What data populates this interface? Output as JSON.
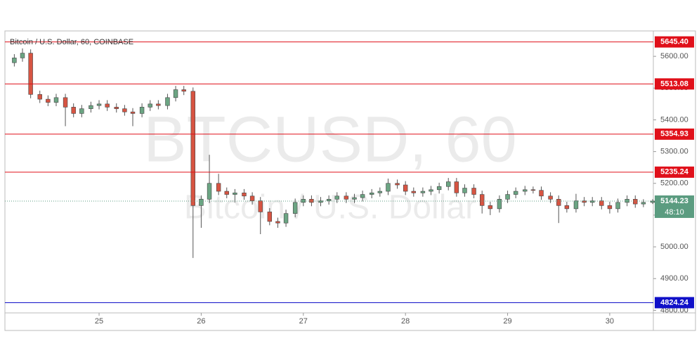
{
  "chart_data": {
    "type": "candlestick",
    "title": "Bitcoin / U.S. Dollar, 60, COINBASE",
    "watermark_symbol": "BTCUSD, 60",
    "watermark_name": "Bitcoin / U.S. Dollar",
    "x": [
      24.17,
      24.25,
      24.33,
      24.42,
      24.5,
      24.58,
      24.67,
      24.75,
      24.83,
      24.92,
      25.0,
      25.08,
      25.17,
      25.25,
      25.33,
      25.42,
      25.5,
      25.58,
      25.67,
      25.75,
      25.83,
      25.92,
      26.0,
      26.08,
      26.17,
      26.25,
      26.33,
      26.42,
      26.5,
      26.58,
      26.67,
      26.75,
      26.83,
      26.92,
      27.0,
      27.08,
      27.17,
      27.25,
      27.33,
      27.42,
      27.5,
      27.58,
      27.67,
      27.75,
      27.83,
      27.92,
      28.0,
      28.08,
      28.17,
      28.25,
      28.33,
      28.42,
      28.5,
      28.58,
      28.67,
      28.75,
      28.83,
      28.92,
      29.0,
      29.08,
      29.17,
      29.25,
      29.33,
      29.42,
      29.5,
      29.58,
      29.67,
      29.75,
      29.83,
      29.92,
      30.0,
      30.08,
      30.17,
      30.25,
      30.33,
      30.42
    ],
    "open": [
      5580,
      5595,
      5610,
      5480,
      5465,
      5455,
      5470,
      5440,
      5420,
      5435,
      5445,
      5450,
      5440,
      5435,
      5425,
      5420,
      5440,
      5450,
      5445,
      5470,
      5495,
      5490,
      5130,
      5150,
      5200,
      5175,
      5165,
      5170,
      5160,
      5145,
      5110,
      5080,
      5075,
      5105,
      5140,
      5150,
      5140,
      5145,
      5150,
      5160,
      5150,
      5155,
      5165,
      5170,
      5175,
      5200,
      5195,
      5175,
      5170,
      5175,
      5180,
      5190,
      5205,
      5170,
      5185,
      5165,
      5130,
      5120,
      5150,
      5165,
      5175,
      5180,
      5178,
      5160,
      5150,
      5130,
      5120,
      5145,
      5140,
      5145,
      5130,
      5120,
      5140,
      5150,
      5135,
      5140
    ],
    "high": [
      5607,
      5625,
      5622,
      5492,
      5477,
      5482,
      5482,
      5452,
      5447,
      5457,
      5462,
      5462,
      5452,
      5447,
      5437,
      5452,
      5462,
      5462,
      5482,
      5507,
      5507,
      5502,
      5162,
      5290,
      5230,
      5187,
      5182,
      5182,
      5172,
      5157,
      5122,
      5092,
      5117,
      5152,
      5162,
      5162,
      5157,
      5162,
      5172,
      5172,
      5167,
      5177,
      5182,
      5187,
      5215,
      5212,
      5207,
      5187,
      5187,
      5192,
      5202,
      5217,
      5217,
      5197,
      5197,
      5177,
      5142,
      5162,
      5177,
      5187,
      5192,
      5190,
      5190,
      5172,
      5162,
      5142,
      5167,
      5157,
      5157,
      5157,
      5142,
      5152,
      5162,
      5162,
      5150,
      5150
    ],
    "low": [
      5568,
      5583,
      5468,
      5453,
      5443,
      5443,
      5380,
      5408,
      5408,
      5423,
      5433,
      5428,
      5423,
      5413,
      5380,
      5408,
      5428,
      5433,
      5433,
      5458,
      5478,
      4965,
      5060,
      5138,
      5163,
      5153,
      5140,
      5148,
      5133,
      5040,
      5068,
      5060,
      5063,
      5093,
      5128,
      5128,
      5128,
      5133,
      5138,
      5138,
      5138,
      5143,
      5153,
      5158,
      5163,
      5183,
      5163,
      5158,
      5158,
      5163,
      5168,
      5178,
      5158,
      5158,
      5153,
      5105,
      5100,
      5108,
      5138,
      5153,
      5163,
      5168,
      5148,
      5138,
      5075,
      5108,
      5108,
      5128,
      5128,
      5118,
      5105,
      5108,
      5128,
      5123,
      5125,
      5135
    ],
    "close": [
      5595,
      5610,
      5480,
      5465,
      5455,
      5470,
      5440,
      5420,
      5435,
      5445,
      5450,
      5440,
      5435,
      5425,
      5420,
      5440,
      5450,
      5445,
      5470,
      5495,
      5490,
      5130,
      5150,
      5200,
      5175,
      5165,
      5170,
      5160,
      5145,
      5110,
      5080,
      5075,
      5105,
      5140,
      5150,
      5140,
      5145,
      5150,
      5160,
      5150,
      5155,
      5165,
      5170,
      5175,
      5200,
      5195,
      5175,
      5170,
      5175,
      5180,
      5190,
      5205,
      5170,
      5185,
      5165,
      5130,
      5120,
      5150,
      5165,
      5175,
      5180,
      5178,
      5160,
      5150,
      5130,
      5120,
      5145,
      5140,
      5145,
      5130,
      5120,
      5140,
      5150,
      5135,
      5140,
      5144.23
    ],
    "up_color": "#6ba583",
    "down_color": "#d75442",
    "xlim": [
      24.078,
      30.427
    ],
    "xticks": [
      25,
      26,
      27,
      28,
      29,
      30
    ],
    "ylim": [
      4792,
      5680
    ],
    "yticks": [
      {
        "value": 4800,
        "label": "4800.00"
      },
      {
        "value": 4900,
        "label": "4900.00"
      },
      {
        "value": 5000,
        "label": "5000.00"
      },
      {
        "value": 5100,
        "label": "5100.00"
      },
      {
        "value": 5200,
        "label": "5200.00"
      },
      {
        "value": 5300,
        "label": "5300.00"
      },
      {
        "value": 5400,
        "label": "5400.00"
      },
      {
        "value": 5500,
        "label": "5500.00"
      },
      {
        "value": 5600,
        "label": "5600.00"
      }
    ],
    "levels": [
      {
        "value": 5645.4,
        "label": "5645.40",
        "color": "#e0101a"
      },
      {
        "value": 5513.08,
        "label": "5513.08",
        "color": "#e0101a"
      },
      {
        "value": 5354.93,
        "label": "5354.93",
        "color": "#e0101a"
      },
      {
        "value": 5235.24,
        "label": "5235.24",
        "color": "#e0101a"
      },
      {
        "value": 4824.24,
        "label": "4824.24",
        "color": "#1010c8"
      }
    ],
    "last_price": 5144.23,
    "last_price_color": "#5b9c80",
    "countdown": "48:10"
  }
}
